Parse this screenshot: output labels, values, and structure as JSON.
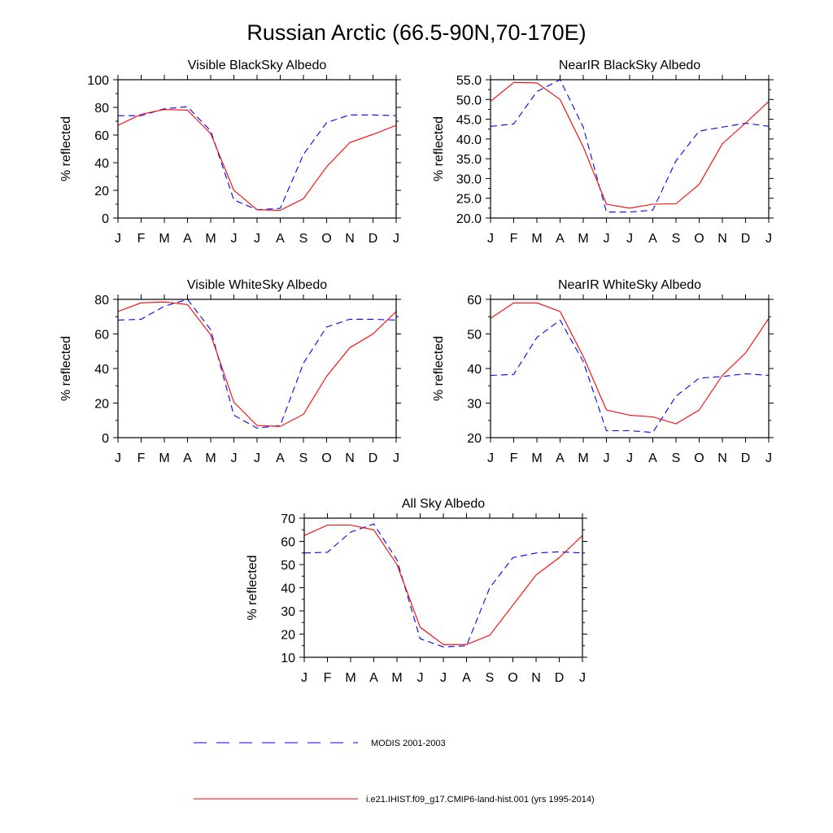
{
  "figure": {
    "title": "Russian Arctic (66.5-90N,70-170E)",
    "legend": [
      {
        "name": "MODIS 2001-2003",
        "color": "#0000ff",
        "dash": "dashed"
      },
      {
        "name": "i.e21.IHIST.f09_g17.CMIP6-land-hist.001 (yrs 1995-2014)",
        "color": "#ff0000",
        "dash": "solid"
      }
    ]
  },
  "chart_data": [
    {
      "type": "line",
      "title": "Visible BlackSky Albedo",
      "ylabel": "% reflected",
      "categories": [
        "J",
        "F",
        "M",
        "A",
        "M",
        "J",
        "J",
        "A",
        "S",
        "O",
        "N",
        "D",
        "J"
      ],
      "ylim": [
        0,
        100
      ],
      "yticks": [
        0,
        20,
        40,
        60,
        80,
        100
      ],
      "ytick_labels": [
        "0",
        "20",
        "40",
        "60",
        "80",
        "100"
      ],
      "series": [
        {
          "name": "MODIS 2001-2003",
          "color": "#0000ff",
          "dash": "dashed",
          "values": [
            74,
            74,
            79,
            80.5,
            63,
            13,
            6,
            7,
            46,
            69,
            74.5,
            74.5,
            74
          ]
        },
        {
          "name": "i.e21.IHIST.f09_g17.CMIP6-land-hist.001 (yrs 1995-2014)",
          "color": "#ff0000",
          "dash": "solid",
          "values": [
            67,
            75,
            78.5,
            78,
            61,
            20,
            6,
            5.5,
            14,
            37,
            54.5,
            60.5,
            67
          ]
        }
      ]
    },
    {
      "type": "line",
      "title": "NearIR BlackSky Albedo",
      "ylabel": "% reflected",
      "categories": [
        "J",
        "F",
        "M",
        "A",
        "M",
        "J",
        "J",
        "A",
        "S",
        "O",
        "N",
        "D",
        "J"
      ],
      "ylim": [
        20,
        55
      ],
      "yticks": [
        20,
        25,
        30,
        35,
        40,
        45,
        50,
        55
      ],
      "ytick_labels": [
        "20.0",
        "25.0",
        "30.0",
        "35.0",
        "40.0",
        "45.0",
        "50.0",
        "55.0"
      ],
      "series": [
        {
          "name": "MODIS 2001-2003",
          "color": "#0000ff",
          "dash": "dashed",
          "values": [
            43.2,
            43.8,
            52,
            55,
            43,
            21.5,
            21.5,
            22,
            34.5,
            42,
            43,
            44,
            43.2
          ]
        },
        {
          "name": "i.e21.IHIST.f09_g17.CMIP6-land-hist.001 (yrs 1995-2014)",
          "color": "#ff0000",
          "dash": "solid",
          "values": [
            49.5,
            54.3,
            54.2,
            50,
            38,
            23.5,
            22.5,
            23.5,
            23.6,
            28.5,
            38.8,
            44,
            49.5
          ]
        }
      ]
    },
    {
      "type": "line",
      "title": "Visible WhiteSky Albedo",
      "ylabel": "% reflected",
      "categories": [
        "J",
        "F",
        "M",
        "A",
        "M",
        "J",
        "J",
        "A",
        "S",
        "O",
        "N",
        "D",
        "J"
      ],
      "ylim": [
        0,
        80
      ],
      "yticks": [
        0,
        20,
        40,
        60,
        80
      ],
      "ytick_labels": [
        "0",
        "20",
        "40",
        "60",
        "80"
      ],
      "series": [
        {
          "name": "MODIS 2001-2003",
          "color": "#0000ff",
          "dash": "dashed",
          "values": [
            68,
            68.5,
            76,
            80,
            62.5,
            13,
            5.5,
            7,
            43,
            64,
            68.5,
            68.5,
            68
          ]
        },
        {
          "name": "i.e21.IHIST.f09_g17.CMIP6-land-hist.001 (yrs 1995-2014)",
          "color": "#ff0000",
          "dash": "solid",
          "values": [
            73,
            78,
            78.5,
            77,
            59.5,
            20.5,
            7,
            6.5,
            13.5,
            35.5,
            52,
            60,
            73
          ]
        }
      ]
    },
    {
      "type": "line",
      "title": "NearIR WhiteSky Albedo",
      "ylabel": "% reflected",
      "categories": [
        "J",
        "F",
        "M",
        "A",
        "M",
        "J",
        "J",
        "A",
        "S",
        "O",
        "N",
        "D",
        "J"
      ],
      "ylim": [
        20,
        60
      ],
      "yticks": [
        20,
        30,
        40,
        50,
        60
      ],
      "ytick_labels": [
        "20",
        "30",
        "40",
        "50",
        "60"
      ],
      "series": [
        {
          "name": "MODIS 2001-2003",
          "color": "#0000ff",
          "dash": "dashed",
          "values": [
            38,
            38.3,
            49,
            54,
            42,
            22,
            22,
            21.5,
            32,
            37.2,
            37.7,
            38.5,
            38
          ]
        },
        {
          "name": "i.e21.IHIST.f09_g17.CMIP6-land-hist.001 (yrs 1995-2014)",
          "color": "#ff0000",
          "dash": "solid",
          "values": [
            54.5,
            59,
            59,
            56.5,
            43.5,
            28,
            26.5,
            26,
            24,
            28,
            38,
            44.5,
            54.5
          ]
        }
      ]
    },
    {
      "type": "line",
      "title": "All Sky Albedo",
      "ylabel": "% reflected",
      "categories": [
        "J",
        "F",
        "M",
        "A",
        "M",
        "J",
        "J",
        "A",
        "S",
        "O",
        "N",
        "D",
        "J"
      ],
      "ylim": [
        10,
        70
      ],
      "yticks": [
        10,
        20,
        30,
        40,
        50,
        60,
        70
      ],
      "ytick_labels": [
        "10",
        "20",
        "30",
        "40",
        "50",
        "60",
        "70"
      ],
      "series": [
        {
          "name": "MODIS 2001-2003",
          "color": "#0000ff",
          "dash": "dashed",
          "values": [
            55,
            55.3,
            64,
            67.5,
            52,
            18,
            14.5,
            15,
            40,
            53,
            55,
            55.5,
            55
          ]
        },
        {
          "name": "i.e21.IHIST.f09_g17.CMIP6-land-hist.001 (yrs 1995-2014)",
          "color": "#ff0000",
          "dash": "solid",
          "values": [
            62.5,
            67,
            67,
            65,
            50,
            23,
            15.5,
            15.5,
            19.5,
            32.5,
            45.5,
            53,
            62.5
          ]
        }
      ]
    }
  ]
}
